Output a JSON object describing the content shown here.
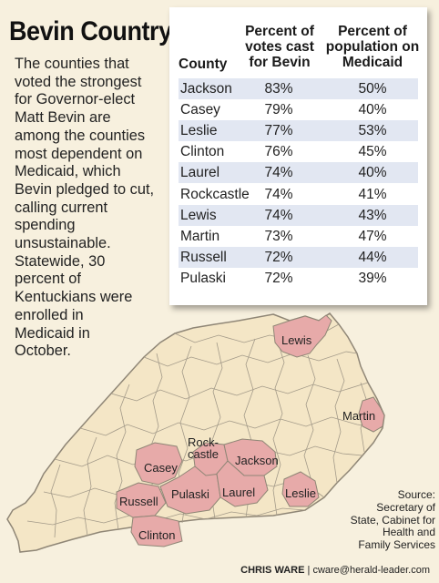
{
  "title": "Bevin Country",
  "intro_lines": [
    "The counties that",
    "voted the strongest",
    "for Governor-elect",
    "Matt Bevin are",
    "among the counties",
    "most dependent on",
    "Medicaid, which",
    "Bevin pledged to cut,",
    "calling current",
    "spending",
    "unsustainable.",
    "Statewide, 30",
    "percent of",
    "Kentuckians were",
    "enrolled in",
    "Medicaid in",
    "October."
  ],
  "chart_data": {
    "type": "table",
    "columns": [
      "County",
      "Percent of votes cast for Bevin",
      "Percent of population on Medicaid"
    ],
    "column_header_lines": [
      [
        "County"
      ],
      [
        "Percent of",
        "votes cast",
        "for Bevin"
      ],
      [
        "Percent of",
        "population on",
        "Medicaid"
      ]
    ],
    "rows": [
      {
        "county": "Jackson",
        "votes": "83%",
        "medicaid": "50%"
      },
      {
        "county": "Casey",
        "votes": "79%",
        "medicaid": "40%"
      },
      {
        "county": "Leslie",
        "votes": "77%",
        "medicaid": "53%"
      },
      {
        "county": "Clinton",
        "votes": "76%",
        "medicaid": "45%"
      },
      {
        "county": "Laurel",
        "votes": "74%",
        "medicaid": "40%"
      },
      {
        "county": "Rockcastle",
        "votes": "74%",
        "medicaid": "41%"
      },
      {
        "county": "Lewis",
        "votes": "74%",
        "medicaid": "43%"
      },
      {
        "county": "Martin",
        "votes": "73%",
        "medicaid": "47%"
      },
      {
        "county": "Russell",
        "votes": "72%",
        "medicaid": "44%"
      },
      {
        "county": "Pulaski",
        "votes": "72%",
        "medicaid": "39%"
      }
    ],
    "map_labels": {
      "lewis": "Lewis",
      "martin": "Martin",
      "rockcastle_1": "Rock-",
      "rockcastle_2": "castle",
      "jackson": "Jackson",
      "casey": "Casey",
      "russell": "Russell",
      "pulaski": "Pulaski",
      "laurel": "Laurel",
      "leslie": "Leslie",
      "clinton": "Clinton"
    }
  },
  "source_lines": [
    "Source:",
    "Secretary of",
    "State, Cabinet for",
    "Health and",
    "Family Services"
  ],
  "credit": {
    "name": "CHRIS WARE",
    "separator": " | ",
    "email": "cware@herald-leader.com"
  },
  "colors": {
    "background": "#f7f0de",
    "map_fill": "#f4e6c6",
    "county_border": "#9a8f7e",
    "highlight": "#e7aaa9",
    "table_stripe": "#e2e7f2"
  }
}
